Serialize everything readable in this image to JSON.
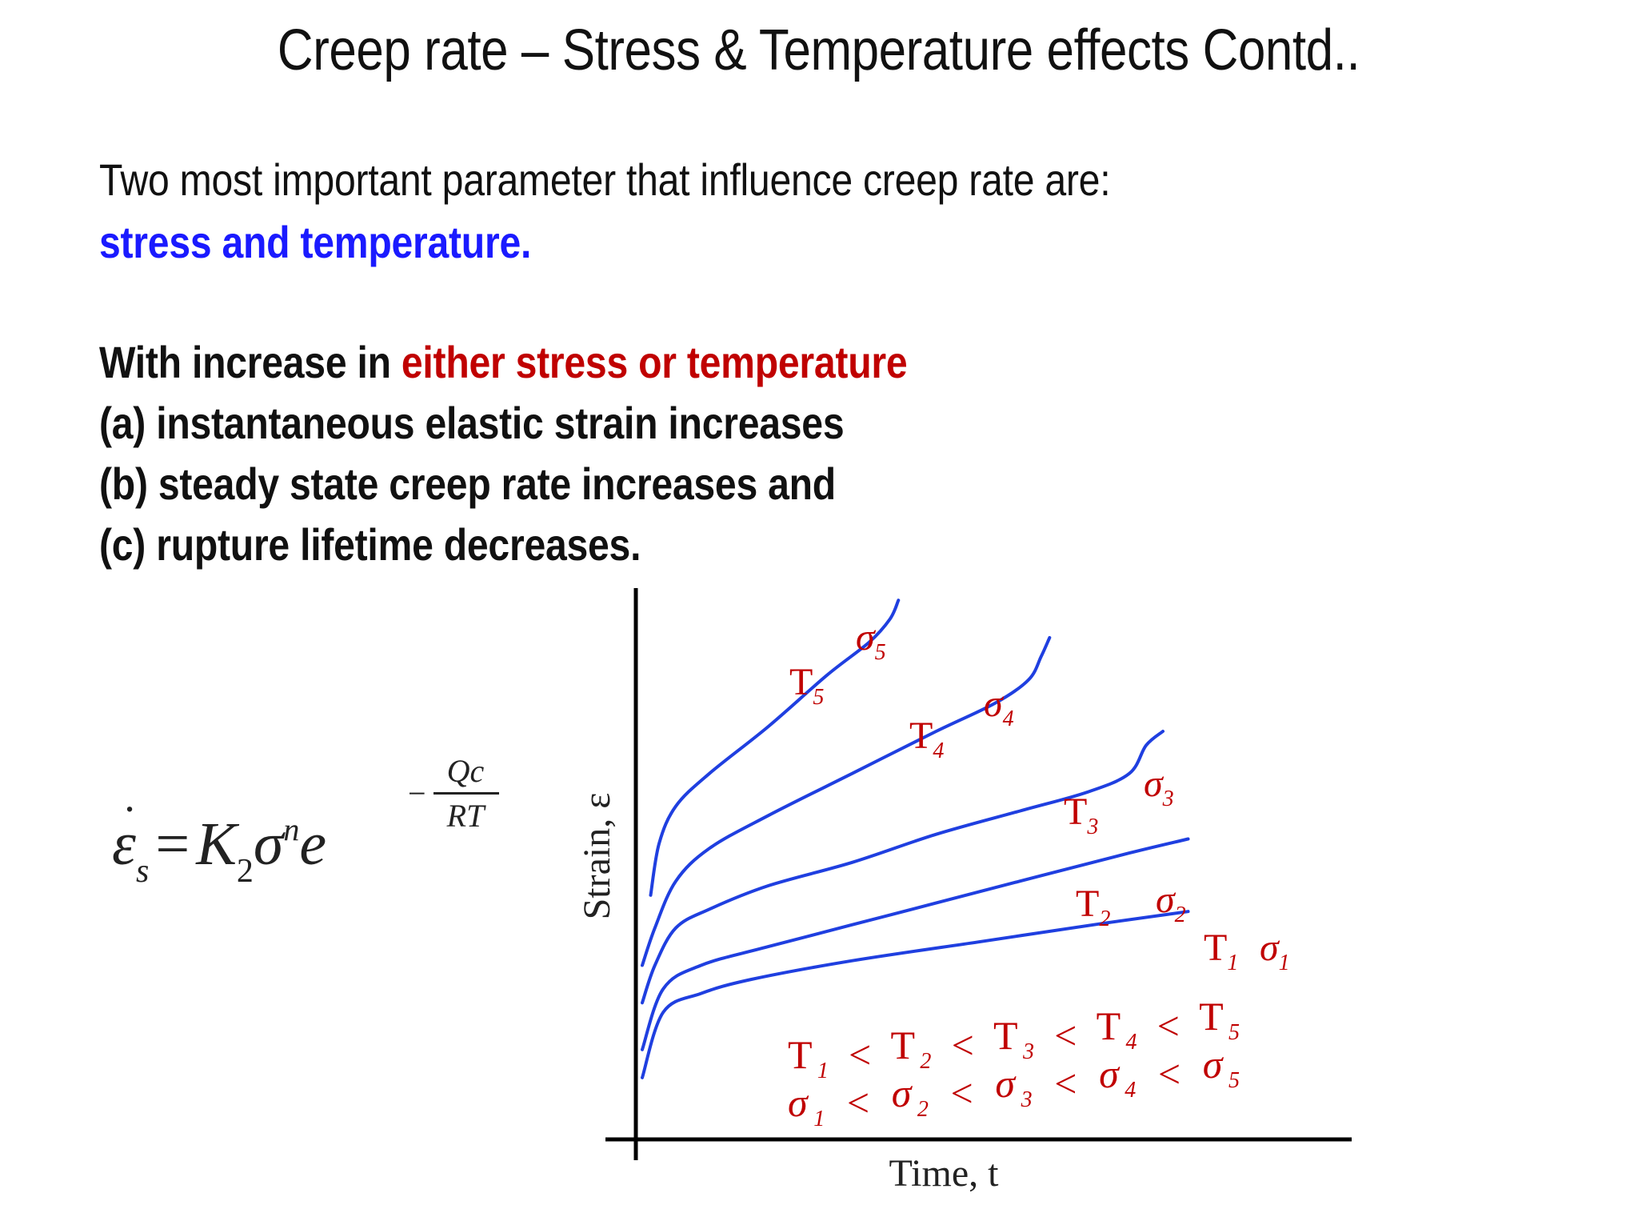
{
  "slide": {
    "title": "Creep rate – Stress & Temperature effects Contd..",
    "intro_line": "Two most important parameter that influence creep rate are:",
    "intro_highlight": "stress and temperature.",
    "effects_prefix": "With increase in ",
    "effects_highlight": "either stress or temperature",
    "effects": [
      "(a) instantaneous elastic strain increases",
      "(b) steady state creep rate increases and",
      "(c) rupture lifetime decreases."
    ],
    "colors": {
      "text": "#111111",
      "blue": "#1a1aff",
      "red": "#c00000",
      "curve": "#1f3fe0"
    }
  },
  "equation": {
    "lhs": "ε",
    "lhs_sub": "s",
    "equals": "=",
    "coefficient": "K",
    "coefficient_sub": "2",
    "sigma": "σ",
    "sigma_sup": "n",
    "base": "e",
    "exp_minus": "−",
    "exp_numerator": "Qc",
    "exp_denominator": "RT"
  },
  "chart_data": {
    "type": "line",
    "xlabel": "Time, t",
    "ylabel": "Strain, ε",
    "series": [
      {
        "name": "T1 σ1",
        "T_label": "T",
        "T_sub": "1",
        "sigma_label": "σ",
        "sigma_sub": "1",
        "points": [
          [
            0.0,
            0.06
          ],
          [
            0.25,
            0.2
          ],
          [
            0.7,
            0.24
          ],
          [
            1.3,
            0.27
          ],
          [
            2.5,
            0.31
          ],
          [
            4.0,
            0.35
          ],
          [
            5.5,
            0.39
          ],
          [
            6.5,
            0.415
          ]
        ]
      },
      {
        "name": "T2 σ2",
        "T_label": "T",
        "T_sub": "2",
        "sigma_label": "σ",
        "sigma_sub": "2",
        "points": [
          [
            0.0,
            0.12
          ],
          [
            0.25,
            0.25
          ],
          [
            0.7,
            0.3
          ],
          [
            1.5,
            0.34
          ],
          [
            3.0,
            0.41
          ],
          [
            4.5,
            0.48
          ],
          [
            5.8,
            0.54
          ],
          [
            6.5,
            0.57
          ]
        ]
      },
      {
        "name": "T3 σ3",
        "T_label": "T",
        "T_sub": "3",
        "sigma_label": "σ",
        "sigma_sub": "3",
        "points": [
          [
            0.0,
            0.22
          ],
          [
            0.15,
            0.3
          ],
          [
            0.4,
            0.38
          ],
          [
            0.8,
            0.42
          ],
          [
            1.5,
            0.47
          ],
          [
            2.5,
            0.52
          ],
          [
            3.5,
            0.58
          ],
          [
            4.5,
            0.63
          ],
          [
            5.3,
            0.67
          ],
          [
            5.8,
            0.71
          ],
          [
            6.0,
            0.77
          ],
          [
            6.2,
            0.8
          ]
        ]
      },
      {
        "name": "T4 σ4",
        "T_label": "T",
        "T_sub": "4",
        "sigma_label": "σ",
        "sigma_sub": "4",
        "points": [
          [
            0.0,
            0.3
          ],
          [
            0.15,
            0.38
          ],
          [
            0.4,
            0.48
          ],
          [
            0.8,
            0.55
          ],
          [
            1.5,
            0.62
          ],
          [
            2.5,
            0.71
          ],
          [
            3.5,
            0.8
          ],
          [
            4.2,
            0.86
          ],
          [
            4.6,
            0.91
          ],
          [
            4.75,
            0.96
          ],
          [
            4.85,
            1.0
          ]
        ]
      },
      {
        "name": "T5 σ5",
        "T_label": "T",
        "T_sub": "5",
        "sigma_label": "σ",
        "sigma_sub": "5",
        "points": [
          [
            0.1,
            0.45
          ],
          [
            0.2,
            0.56
          ],
          [
            0.4,
            0.64
          ],
          [
            0.8,
            0.71
          ],
          [
            1.5,
            0.81
          ],
          [
            2.2,
            0.92
          ],
          [
            2.7,
            0.99
          ],
          [
            2.95,
            1.04
          ],
          [
            3.05,
            1.08
          ]
        ]
      }
    ],
    "inequality_temperature": {
      "symbol": "T",
      "subs": [
        "1",
        "2",
        "3",
        "4",
        "5"
      ],
      "separator": "<"
    },
    "inequality_stress": {
      "symbol": "σ",
      "subs": [
        "1",
        "2",
        "3",
        "4",
        "5"
      ],
      "separator": "<"
    },
    "grid": false,
    "legend": "none"
  }
}
